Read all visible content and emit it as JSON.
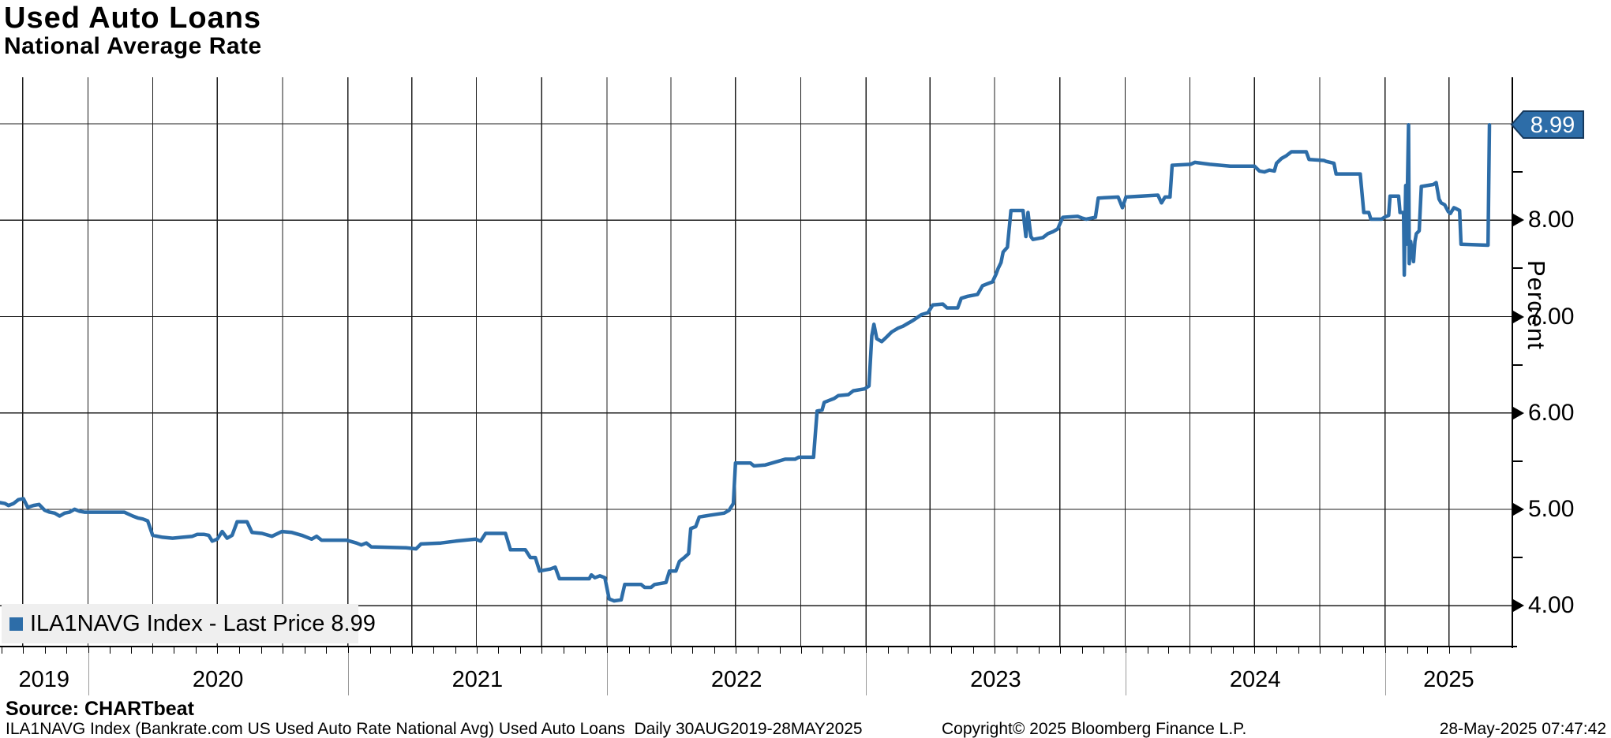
{
  "header": {
    "title": "Used Auto Loans",
    "subtitle": "National Average Rate"
  },
  "legend": {
    "series_label": "ILA1NAVG Index - Last Price",
    "last_price": "8.99"
  },
  "y_axis": {
    "unit_label": "Percent",
    "badge_label": "8.99",
    "major_tick_labels": [
      "8.00",
      "7.00",
      "6.00",
      "5.00",
      "4.00"
    ]
  },
  "x_axis": {
    "year_labels": [
      "2019",
      "2020",
      "2021",
      "2022",
      "2023",
      "2024",
      "2025"
    ]
  },
  "footer": {
    "source": "Source: CHARTbeat",
    "description": "ILA1NAVG Index (Bankrate.com US Used Auto Rate National Avg) Used Auto Loans  Daily 30AUG2019-28MAY2025",
    "copyright": "Copyright© 2025 Bloomberg Finance L.P.",
    "timestamp": "28-May-2025 07:47:42"
  },
  "colors": {
    "line": "#2d6da8",
    "badge_border": "#16395d",
    "legend_bg": "#efefef",
    "grid": "#1c1c1c"
  },
  "chart_data": {
    "type": "line",
    "title": "Used Auto Loans - National Average Rate",
    "series_name": "ILA1NAVG Index",
    "ylabel": "Percent",
    "date_start": "2019-08-30",
    "date_end": "2025-05-28",
    "ylim": [
      3.576,
      9.483
    ],
    "y_gridline_values": [
      9,
      8,
      7,
      6,
      5,
      4
    ],
    "y_labeled_ticks": [
      8,
      7,
      6,
      5,
      4
    ],
    "y_minor_ticks": [
      8.5,
      7.5,
      6.5,
      5.5,
      4.5
    ],
    "x_gridlines": "quarter-starts",
    "x_minor_ticks": "month-starts",
    "legend_position": "bottom-left",
    "last_price": 8.99,
    "points": [
      [
        "2019-08-30",
        5.07
      ],
      [
        "2019-09-06",
        5.06
      ],
      [
        "2019-09-11",
        5.04
      ],
      [
        "2019-09-18",
        5.06
      ],
      [
        "2019-09-25",
        5.1
      ],
      [
        "2019-10-02",
        5.11
      ],
      [
        "2019-10-08",
        5.02
      ],
      [
        "2019-10-16",
        5.04
      ],
      [
        "2019-10-24",
        5.05
      ],
      [
        "2019-11-01",
        4.99
      ],
      [
        "2019-11-08",
        4.97
      ],
      [
        "2019-11-15",
        4.96
      ],
      [
        "2019-11-22",
        4.93
      ],
      [
        "2019-11-29",
        4.96
      ],
      [
        "2019-12-06",
        4.97
      ],
      [
        "2019-12-13",
        5.0
      ],
      [
        "2019-12-20",
        4.98
      ],
      [
        "2019-12-27",
        4.97
      ],
      [
        "2020-01-31",
        4.97
      ],
      [
        "2020-02-21",
        4.97
      ],
      [
        "2020-03-04",
        4.93
      ],
      [
        "2020-03-11",
        4.91
      ],
      [
        "2020-03-18",
        4.9
      ],
      [
        "2020-03-25",
        4.88
      ],
      [
        "2020-04-01",
        4.73
      ],
      [
        "2020-04-15",
        4.71
      ],
      [
        "2020-04-29",
        4.7
      ],
      [
        "2020-05-13",
        4.71
      ],
      [
        "2020-05-27",
        4.72
      ],
      [
        "2020-06-03",
        4.74
      ],
      [
        "2020-06-12",
        4.74
      ],
      [
        "2020-06-19",
        4.73
      ],
      [
        "2020-06-24",
        4.67
      ],
      [
        "2020-07-01",
        4.69
      ],
      [
        "2020-07-08",
        4.77
      ],
      [
        "2020-07-15",
        4.7
      ],
      [
        "2020-07-22",
        4.73
      ],
      [
        "2020-07-29",
        4.87
      ],
      [
        "2020-08-12",
        4.87
      ],
      [
        "2020-08-19",
        4.76
      ],
      [
        "2020-09-02",
        4.75
      ],
      [
        "2020-09-16",
        4.72
      ],
      [
        "2020-09-30",
        4.77
      ],
      [
        "2020-10-14",
        4.76
      ],
      [
        "2020-10-28",
        4.73
      ],
      [
        "2020-11-11",
        4.69
      ],
      [
        "2020-11-18",
        4.72
      ],
      [
        "2020-11-25",
        4.68
      ],
      [
        "2020-12-30",
        4.68
      ],
      [
        "2021-01-13",
        4.65
      ],
      [
        "2021-01-20",
        4.63
      ],
      [
        "2021-01-27",
        4.65
      ],
      [
        "2021-02-03",
        4.61
      ],
      [
        "2021-03-24",
        4.6
      ],
      [
        "2021-04-07",
        4.59
      ],
      [
        "2021-04-14",
        4.64
      ],
      [
        "2021-05-12",
        4.65
      ],
      [
        "2021-06-02",
        4.67
      ],
      [
        "2021-06-30",
        4.69
      ],
      [
        "2021-07-07",
        4.67
      ],
      [
        "2021-07-14",
        4.75
      ],
      [
        "2021-08-11",
        4.75
      ],
      [
        "2021-08-18",
        4.58
      ],
      [
        "2021-09-08",
        4.58
      ],
      [
        "2021-09-15",
        4.5
      ],
      [
        "2021-09-22",
        4.5
      ],
      [
        "2021-09-28",
        4.36
      ],
      [
        "2021-10-13",
        4.38
      ],
      [
        "2021-10-20",
        4.4
      ],
      [
        "2021-10-26",
        4.28
      ],
      [
        "2021-12-07",
        4.28
      ],
      [
        "2021-12-10",
        4.32
      ],
      [
        "2021-12-15",
        4.29
      ],
      [
        "2021-12-22",
        4.31
      ],
      [
        "2021-12-29",
        4.29
      ],
      [
        "2022-01-04",
        4.07
      ],
      [
        "2022-01-11",
        4.05
      ],
      [
        "2022-01-21",
        4.06
      ],
      [
        "2022-01-26",
        4.22
      ],
      [
        "2022-02-18",
        4.22
      ],
      [
        "2022-02-23",
        4.19
      ],
      [
        "2022-03-04",
        4.19
      ],
      [
        "2022-03-09",
        4.22
      ],
      [
        "2022-03-25",
        4.24
      ],
      [
        "2022-03-30",
        4.36
      ],
      [
        "2022-04-08",
        4.36
      ],
      [
        "2022-04-13",
        4.46
      ],
      [
        "2022-04-20",
        4.5
      ],
      [
        "2022-04-26",
        4.54
      ],
      [
        "2022-04-29",
        4.8
      ],
      [
        "2022-05-06",
        4.82
      ],
      [
        "2022-05-11",
        4.92
      ],
      [
        "2022-05-27",
        4.94
      ],
      [
        "2022-06-15",
        4.96
      ],
      [
        "2022-06-22",
        4.99
      ],
      [
        "2022-06-28",
        5.06
      ],
      [
        "2022-07-01",
        5.48
      ],
      [
        "2022-07-22",
        5.48
      ],
      [
        "2022-07-27",
        5.45
      ],
      [
        "2022-08-12",
        5.46
      ],
      [
        "2022-08-26",
        5.49
      ],
      [
        "2022-09-09",
        5.52
      ],
      [
        "2022-09-23",
        5.52
      ],
      [
        "2022-09-28",
        5.54
      ],
      [
        "2022-10-19",
        5.54
      ],
      [
        "2022-10-24",
        6.02
      ],
      [
        "2022-10-31",
        6.03
      ],
      [
        "2022-11-03",
        6.11
      ],
      [
        "2022-11-10",
        6.13
      ],
      [
        "2022-11-17",
        6.15
      ],
      [
        "2022-11-23",
        6.18
      ],
      [
        "2022-12-07",
        6.19
      ],
      [
        "2022-12-14",
        6.23
      ],
      [
        "2022-12-30",
        6.25
      ],
      [
        "2023-01-05",
        6.28
      ],
      [
        "2023-01-09",
        6.8
      ],
      [
        "2023-01-12",
        6.92
      ],
      [
        "2023-01-16",
        6.77
      ],
      [
        "2023-01-23",
        6.74
      ],
      [
        "2023-01-30",
        6.79
      ],
      [
        "2023-02-06",
        6.84
      ],
      [
        "2023-02-15",
        6.88
      ],
      [
        "2023-02-22",
        6.9
      ],
      [
        "2023-03-01",
        6.93
      ],
      [
        "2023-03-08",
        6.96
      ],
      [
        "2023-03-20",
        7.02
      ],
      [
        "2023-03-29",
        7.04
      ],
      [
        "2023-04-05",
        7.12
      ],
      [
        "2023-04-19",
        7.13
      ],
      [
        "2023-04-25",
        7.09
      ],
      [
        "2023-05-10",
        7.09
      ],
      [
        "2023-05-15",
        7.19
      ],
      [
        "2023-05-24",
        7.21
      ],
      [
        "2023-06-07",
        7.23
      ],
      [
        "2023-06-14",
        7.32
      ],
      [
        "2023-06-21",
        7.34
      ],
      [
        "2023-06-28",
        7.36
      ],
      [
        "2023-07-03",
        7.44
      ],
      [
        "2023-07-06",
        7.5
      ],
      [
        "2023-07-10",
        7.56
      ],
      [
        "2023-07-13",
        7.67
      ],
      [
        "2023-07-19",
        7.72
      ],
      [
        "2023-07-24",
        8.1
      ],
      [
        "2023-08-10",
        8.1
      ],
      [
        "2023-08-14",
        7.83
      ],
      [
        "2023-08-17",
        8.08
      ],
      [
        "2023-08-21",
        7.83
      ],
      [
        "2023-08-24",
        7.8
      ],
      [
        "2023-09-07",
        7.82
      ],
      [
        "2023-09-14",
        7.86
      ],
      [
        "2023-09-21",
        7.88
      ],
      [
        "2023-09-28",
        7.91
      ],
      [
        "2023-10-05",
        8.03
      ],
      [
        "2023-10-26",
        8.04
      ],
      [
        "2023-11-02",
        8.02
      ],
      [
        "2023-11-07",
        8.01
      ],
      [
        "2023-11-20",
        8.03
      ],
      [
        "2023-11-24",
        8.23
      ],
      [
        "2023-12-22",
        8.24
      ],
      [
        "2023-12-28",
        8.13
      ],
      [
        "2024-01-02",
        8.24
      ],
      [
        "2024-02-16",
        8.26
      ],
      [
        "2024-02-21",
        8.18
      ],
      [
        "2024-02-26",
        8.24
      ],
      [
        "2024-03-04",
        8.24
      ],
      [
        "2024-03-07",
        8.57
      ],
      [
        "2024-04-02",
        8.58
      ],
      [
        "2024-04-08",
        8.6
      ],
      [
        "2024-04-29",
        8.58
      ],
      [
        "2024-05-28",
        8.56
      ],
      [
        "2024-07-01",
        8.56
      ],
      [
        "2024-07-08",
        8.51
      ],
      [
        "2024-07-15",
        8.5
      ],
      [
        "2024-07-22",
        8.52
      ],
      [
        "2024-07-29",
        8.51
      ],
      [
        "2024-08-01",
        8.59
      ],
      [
        "2024-08-08",
        8.64
      ],
      [
        "2024-08-15",
        8.67
      ],
      [
        "2024-08-22",
        8.71
      ],
      [
        "2024-09-12",
        8.71
      ],
      [
        "2024-09-16",
        8.63
      ],
      [
        "2024-10-07",
        8.62
      ],
      [
        "2024-10-10",
        8.61
      ],
      [
        "2024-10-21",
        8.59
      ],
      [
        "2024-10-24",
        8.48
      ],
      [
        "2024-11-27",
        8.48
      ],
      [
        "2024-12-02",
        8.08
      ],
      [
        "2024-12-09",
        8.08
      ],
      [
        "2024-12-12",
        8.01
      ],
      [
        "2024-12-27",
        8.01
      ],
      [
        "2024-12-31",
        8.03
      ],
      [
        "2025-01-06",
        8.05
      ],
      [
        "2025-01-08",
        8.25
      ],
      [
        "2025-01-20",
        8.25
      ],
      [
        "2025-01-22",
        8.08
      ],
      [
        "2025-01-27",
        8.08
      ],
      [
        "2025-01-28",
        7.43
      ],
      [
        "2025-01-30",
        8.36
      ],
      [
        "2025-01-31",
        7.75
      ],
      [
        "2025-02-03",
        8.99
      ],
      [
        "2025-02-04",
        7.55
      ],
      [
        "2025-02-06",
        7.78
      ],
      [
        "2025-02-10",
        7.57
      ],
      [
        "2025-02-12",
        7.78
      ],
      [
        "2025-02-14",
        7.86
      ],
      [
        "2025-02-18",
        7.89
      ],
      [
        "2025-02-21",
        8.35
      ],
      [
        "2025-03-10",
        8.37
      ],
      [
        "2025-03-14",
        8.39
      ],
      [
        "2025-03-18",
        8.22
      ],
      [
        "2025-03-21",
        8.18
      ],
      [
        "2025-03-26",
        8.16
      ],
      [
        "2025-03-31",
        8.09
      ],
      [
        "2025-04-03",
        8.07
      ],
      [
        "2025-04-08",
        8.13
      ],
      [
        "2025-04-11",
        8.12
      ],
      [
        "2025-04-16",
        8.1
      ],
      [
        "2025-04-18",
        7.75
      ],
      [
        "2025-05-26",
        7.74
      ],
      [
        "2025-05-28",
        8.99
      ]
    ]
  }
}
